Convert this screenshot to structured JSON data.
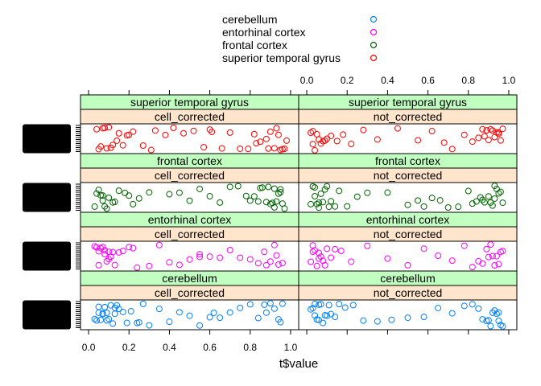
{
  "chart_data": {
    "type": "scatter",
    "title": "",
    "xlabel": "t$value",
    "ylabel": "",
    "xlim": [
      -0.04,
      1.04
    ],
    "x_ticks": [
      "0.0",
      "0.2",
      "0.4",
      "0.6",
      "0.8",
      "1.0"
    ],
    "legend_position": "top",
    "legend": [
      {
        "name": "cerebellum",
        "color": "#0080ff"
      },
      {
        "name": "entorhinal cortex",
        "color": "#ff00ff"
      },
      {
        "name": "frontal cortex",
        "color": "#006400"
      },
      {
        "name": "superior temporal gyrus",
        "color": "#ff0000"
      }
    ],
    "strip_colors": {
      "region": "#c1ffc1",
      "correction": "#ffe5cc"
    },
    "panel_rows": [
      {
        "region": "superior temporal gyrus",
        "color": "#ff0000"
      },
      {
        "region": "frontal cortex",
        "color": "#006400"
      },
      {
        "region": "entorhinal cortex",
        "color": "#ff00ff"
      },
      {
        "region": "cerebellum",
        "color": "#0080ff"
      }
    ],
    "panel_columns": [
      "cell_corrected",
      "not_corrected"
    ],
    "panels": [
      {
        "region": "superior temporal gyrus",
        "correction": "cell_corrected",
        "x": [
          0.04,
          0.06,
          0.05,
          0.08,
          0.1,
          0.07,
          0.12,
          0.14,
          0.09,
          0.17,
          0.2,
          0.22,
          0.15,
          0.27,
          0.31,
          0.33,
          0.38,
          0.42,
          0.47,
          0.52,
          0.57,
          0.61,
          0.66,
          0.7,
          0.75,
          0.79,
          0.82,
          0.85,
          0.88,
          0.9,
          0.92,
          0.94,
          0.95,
          0.96,
          0.97,
          0.93,
          0.89,
          0.11,
          0.19,
          0.6,
          0.83,
          0.98
        ]
      },
      {
        "region": "superior temporal gyrus",
        "correction": "not_corrected",
        "x": [
          0.02,
          0.03,
          0.04,
          0.05,
          0.06,
          0.07,
          0.08,
          0.1,
          0.12,
          0.15,
          0.18,
          0.22,
          0.28,
          0.35,
          0.45,
          0.55,
          0.62,
          0.68,
          0.72,
          0.78,
          0.82,
          0.85,
          0.87,
          0.89,
          0.9,
          0.91,
          0.92,
          0.93,
          0.94,
          0.95,
          0.96,
          0.97,
          0.03,
          0.09,
          0.88,
          0.95
        ]
      },
      {
        "region": "frontal cortex",
        "correction": "cell_corrected",
        "x": [
          0.03,
          0.05,
          0.06,
          0.07,
          0.08,
          0.09,
          0.1,
          0.12,
          0.13,
          0.15,
          0.18,
          0.2,
          0.22,
          0.25,
          0.3,
          0.4,
          0.45,
          0.5,
          0.55,
          0.6,
          0.65,
          0.7,
          0.74,
          0.78,
          0.8,
          0.82,
          0.84,
          0.86,
          0.88,
          0.89,
          0.9,
          0.91,
          0.92,
          0.93,
          0.94,
          0.95,
          0.96,
          0.97,
          0.04,
          0.07,
          0.85,
          0.92,
          0.95
        ]
      },
      {
        "region": "frontal cortex",
        "correction": "not_corrected",
        "x": [
          0.02,
          0.03,
          0.04,
          0.05,
          0.06,
          0.07,
          0.08,
          0.09,
          0.1,
          0.11,
          0.12,
          0.14,
          0.16,
          0.2,
          0.25,
          0.3,
          0.4,
          0.5,
          0.55,
          0.58,
          0.62,
          0.66,
          0.7,
          0.75,
          0.8,
          0.82,
          0.84,
          0.86,
          0.88,
          0.9,
          0.91,
          0.92,
          0.93,
          0.94,
          0.95,
          0.96,
          0.97,
          0.04,
          0.06,
          0.87,
          0.93
        ]
      },
      {
        "region": "entorhinal cortex",
        "correction": "cell_corrected",
        "x": [
          0.03,
          0.04,
          0.05,
          0.06,
          0.07,
          0.08,
          0.09,
          0.1,
          0.11,
          0.12,
          0.13,
          0.15,
          0.17,
          0.2,
          0.24,
          0.3,
          0.35,
          0.4,
          0.45,
          0.5,
          0.55,
          0.6,
          0.65,
          0.7,
          0.75,
          0.8,
          0.84,
          0.87,
          0.9,
          0.92,
          0.94,
          0.96,
          0.05,
          0.08,
          0.1,
          0.22,
          0.55,
          0.88,
          0.93
        ]
      },
      {
        "region": "entorhinal cortex",
        "correction": "not_corrected",
        "x": [
          0.02,
          0.03,
          0.04,
          0.05,
          0.06,
          0.07,
          0.08,
          0.09,
          0.1,
          0.12,
          0.14,
          0.17,
          0.22,
          0.3,
          0.4,
          0.5,
          0.58,
          0.65,
          0.72,
          0.78,
          0.82,
          0.85,
          0.87,
          0.89,
          0.91,
          0.92,
          0.93,
          0.94,
          0.95,
          0.96,
          0.97,
          0.03,
          0.06,
          0.9
        ]
      },
      {
        "region": "cerebellum",
        "correction": "cell_corrected",
        "x": [
          0.03,
          0.04,
          0.05,
          0.06,
          0.07,
          0.08,
          0.09,
          0.1,
          0.11,
          0.12,
          0.13,
          0.14,
          0.15,
          0.17,
          0.19,
          0.21,
          0.24,
          0.27,
          0.3,
          0.35,
          0.4,
          0.45,
          0.5,
          0.55,
          0.6,
          0.65,
          0.7,
          0.75,
          0.8,
          0.84,
          0.87,
          0.9,
          0.92,
          0.94,
          0.96,
          0.05,
          0.07,
          0.09,
          0.13,
          0.25,
          0.62,
          0.88,
          0.95
        ]
      },
      {
        "region": "cerebellum",
        "correction": "not_corrected",
        "x": [
          0.02,
          0.03,
          0.04,
          0.05,
          0.06,
          0.07,
          0.08,
          0.09,
          0.1,
          0.11,
          0.12,
          0.14,
          0.16,
          0.19,
          0.23,
          0.28,
          0.35,
          0.42,
          0.5,
          0.58,
          0.65,
          0.72,
          0.78,
          0.82,
          0.85,
          0.87,
          0.89,
          0.91,
          0.92,
          0.93,
          0.94,
          0.95,
          0.96,
          0.97,
          0.04,
          0.06,
          0.9,
          0.95
        ]
      }
    ]
  }
}
